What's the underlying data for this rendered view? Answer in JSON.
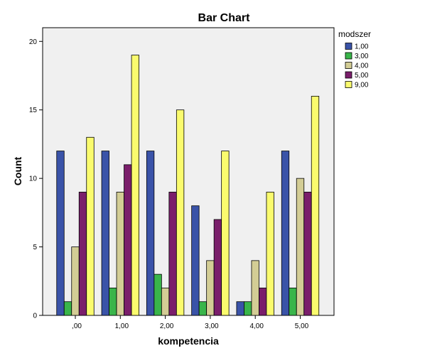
{
  "chart_data": {
    "type": "bar",
    "title": "Bar Chart",
    "xlabel": "kompetencia",
    "ylabel": "Count",
    "ylim": [
      0,
      21
    ],
    "yticks": [
      0,
      5,
      10,
      15,
      20
    ],
    "grid": false,
    "legend_title": "modszer",
    "legend_position": "right",
    "categories": [
      ",00",
      "1,00",
      "2,00",
      "3,00",
      "4,00",
      "5,00"
    ],
    "series": [
      {
        "name": "1,00",
        "color": "#3a53a8",
        "values": [
          12,
          12,
          12,
          8,
          1,
          12
        ]
      },
      {
        "name": "3,00",
        "color": "#39b54a",
        "values": [
          1,
          2,
          3,
          1,
          1,
          2
        ]
      },
      {
        "name": "4,00",
        "color": "#d3cd95",
        "values": [
          5,
          9,
          2,
          4,
          4,
          10
        ]
      },
      {
        "name": "5,00",
        "color": "#7a1e6b",
        "values": [
          9,
          11,
          9,
          7,
          2,
          9
        ]
      },
      {
        "name": "9,00",
        "color": "#fafb6e",
        "values": [
          13,
          19,
          15,
          12,
          9,
          16
        ]
      }
    ]
  }
}
